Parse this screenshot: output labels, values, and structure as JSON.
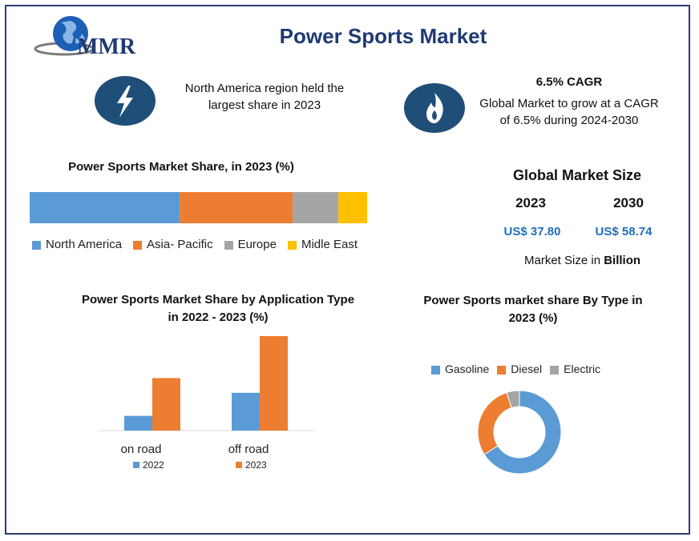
{
  "header": {
    "logo_text": "MMR",
    "title": "Power Sports Market"
  },
  "highlights": {
    "region_text": "North America region held the largest share in 2023",
    "region_line1": "North America region held the",
    "region_line2": "largest share in 2023",
    "cagr_title": "6.5% CAGR",
    "cagr_line1": "Global Market to grow at a CAGR",
    "cagr_line2": "of 6.5% during 2024-2030",
    "icons": [
      "lightning-icon",
      "flame-icon"
    ]
  },
  "market_size": {
    "title": "Global Market Size",
    "years": [
      "2023",
      "2030"
    ],
    "values": [
      "US$ 37.80",
      "US$ 58.74"
    ],
    "note_prefix": "Market Size in ",
    "note_unit": "Billion"
  },
  "colors": {
    "blue": "#5b9bd5",
    "orange": "#ed7d31",
    "gray": "#a5a5a5",
    "yellow": "#ffc000",
    "navy": "#1f4e79"
  },
  "chart_data": [
    {
      "type": "bar",
      "orientation": "horizontal-stacked",
      "title": "Power Sports Market Share, in 2023 (%)",
      "series": [
        {
          "name": "North America",
          "value": 44.5,
          "color": "#5b9bd5"
        },
        {
          "name": "Asia- Pacific",
          "value": 33.5,
          "color": "#ed7d31"
        },
        {
          "name": "Europe",
          "value": 13.5,
          "color": "#a5a5a5"
        },
        {
          "name": "Midle East",
          "value": 8.5,
          "color": "#ffc000"
        }
      ],
      "legend": "bottom"
    },
    {
      "type": "bar",
      "title_line1": "Power Sports Market Share by Application Type",
      "title_line2": "in 2022 - 2023 (%)",
      "categories": [
        "on road",
        "off road"
      ],
      "series": [
        {
          "name": "2022",
          "values": [
            7,
            18
          ],
          "color": "#5b9bd5"
        },
        {
          "name": "2023",
          "values": [
            25,
            45
          ],
          "color": "#ed7d31"
        }
      ],
      "ylim": [
        0,
        45
      ],
      "legend": "bottom"
    },
    {
      "type": "pie",
      "variant": "donut",
      "title_line1": "Power Sports market share By Type in",
      "title_line2": "2023 (%)",
      "series": [
        {
          "name": "Gasoline",
          "value": 66,
          "color": "#5b9bd5"
        },
        {
          "name": "Diesel",
          "value": 29,
          "color": "#ed7d31"
        },
        {
          "name": "Electric",
          "value": 5,
          "color": "#a5a5a5"
        }
      ],
      "legend": "top"
    }
  ]
}
